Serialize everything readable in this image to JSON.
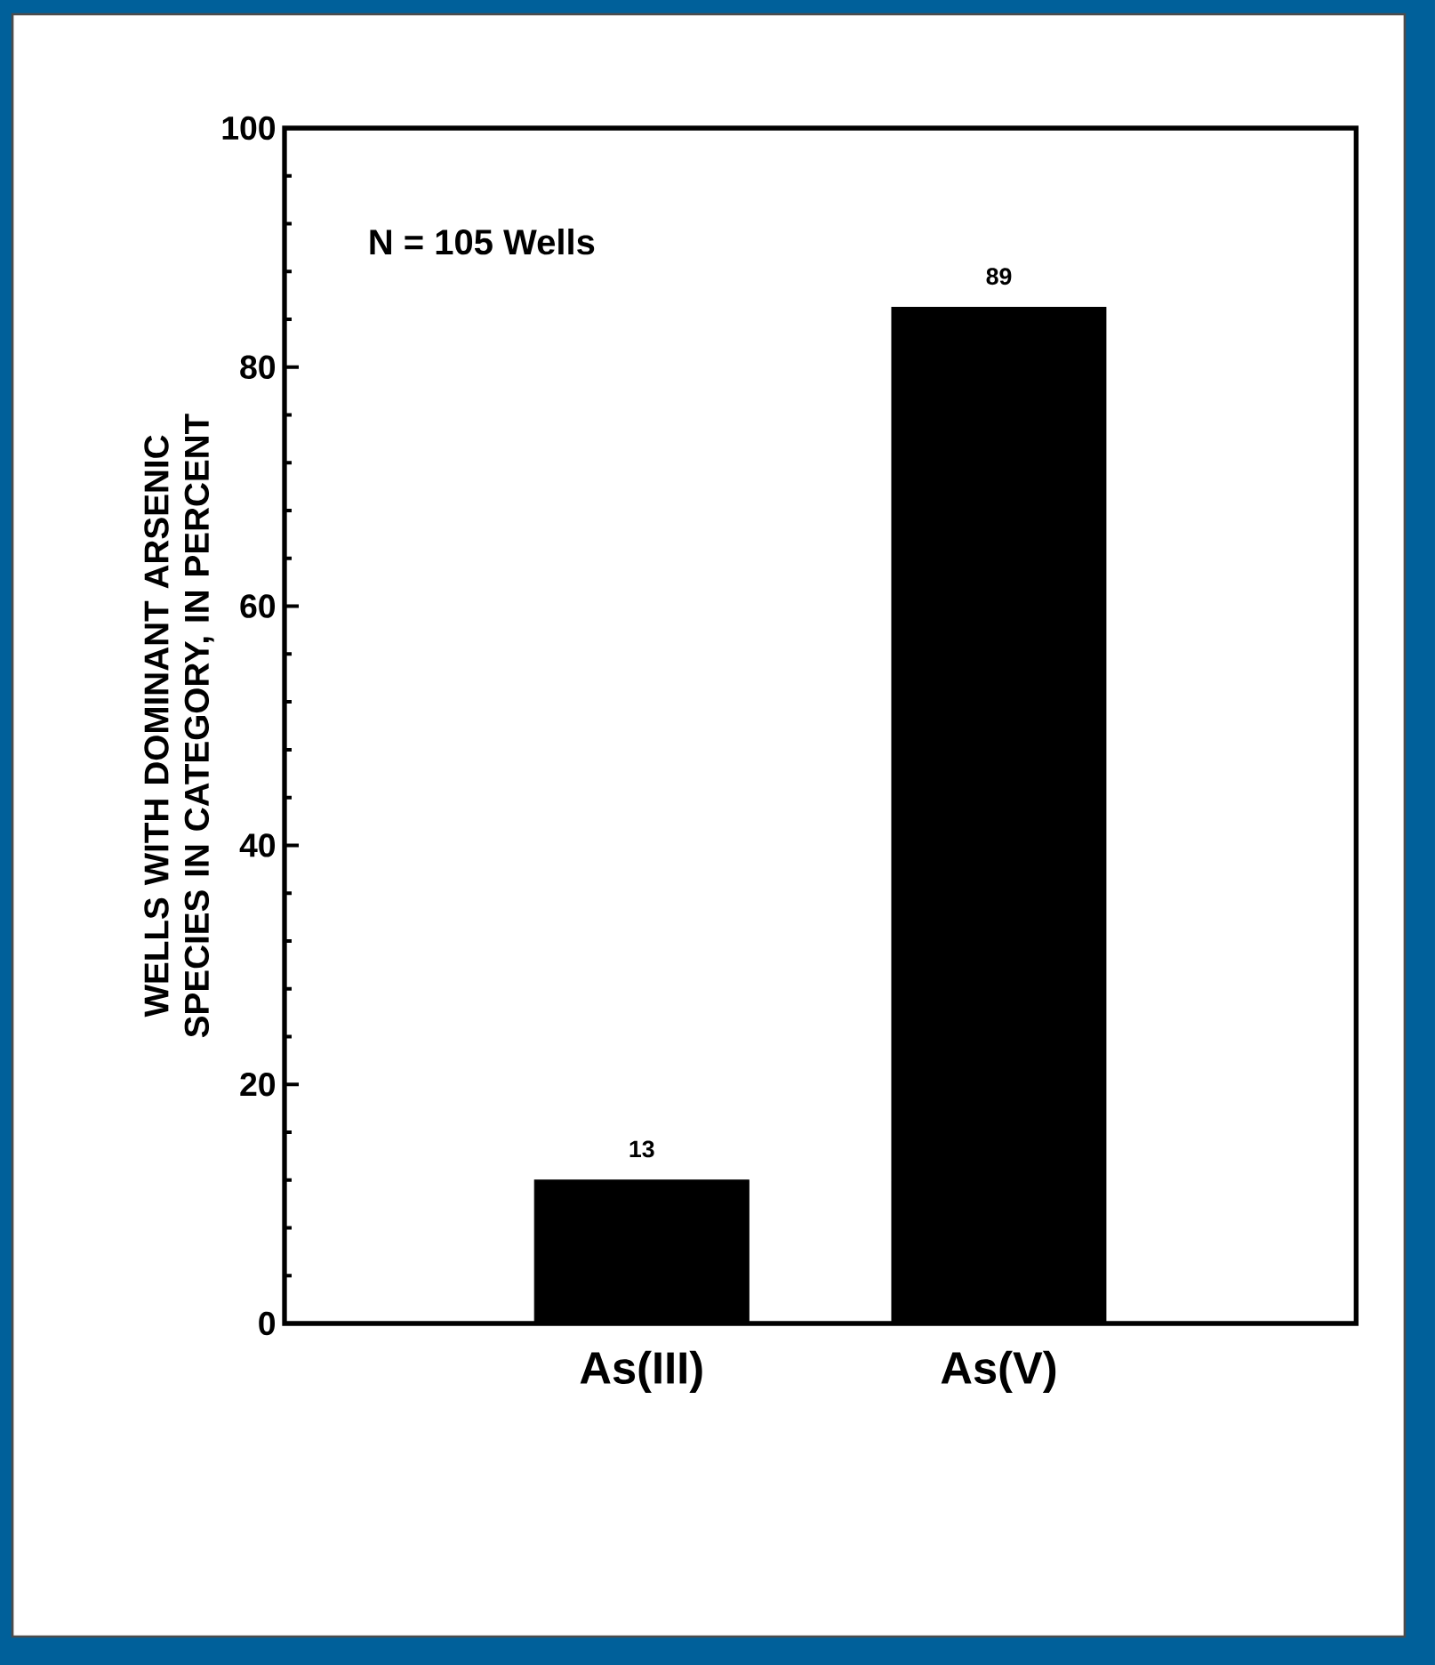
{
  "chart_data": {
    "type": "bar",
    "ylabel": "WELLS WITH DOMINANT ARSENIC SPECIES IN CATEGORY, IN PERCENT",
    "categories": [
      "As(III)",
      "As(V)"
    ],
    "values": [
      12,
      85
    ],
    "color": "#000000",
    "ylim": [
      0,
      100
    ],
    "yticks": [
      0,
      20,
      40,
      60,
      80,
      100
    ],
    "annotations": [
      "N = 105 Wells",
      {
        "text": "13",
        "x": "As(III)",
        "y": 12
      },
      {
        "text": "89",
        "x": "As(V)",
        "y": 85
      }
    ]
  }
}
